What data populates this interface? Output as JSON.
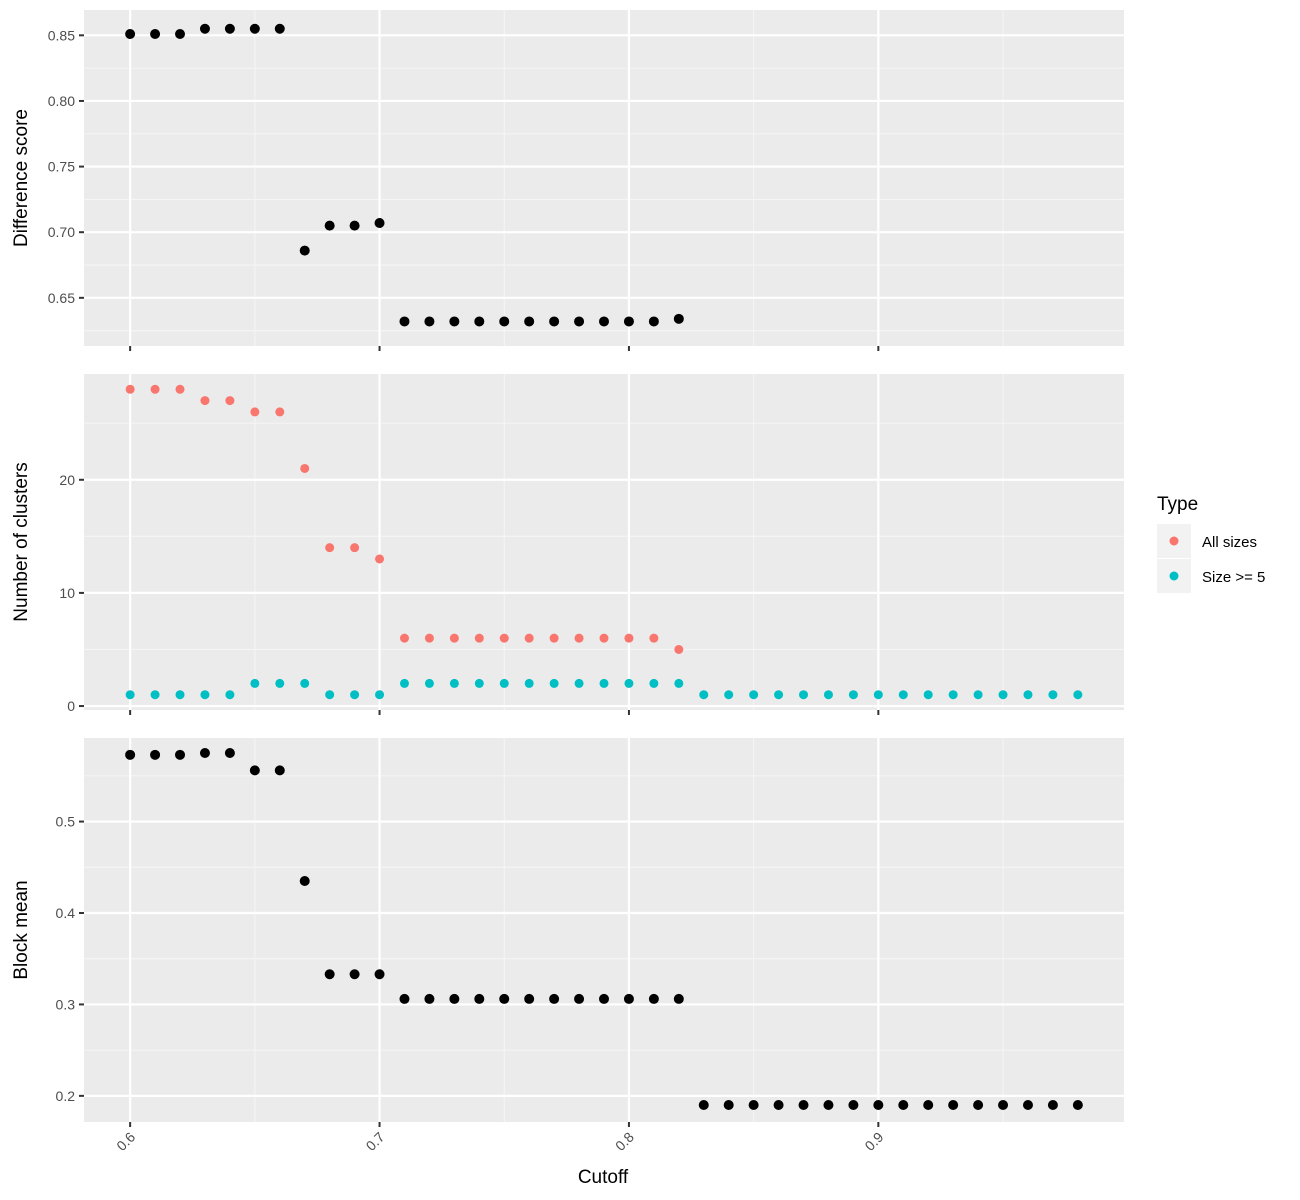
{
  "colors": {
    "panel_bg": "#ebebeb",
    "grid_major": "#ffffff",
    "grid_minor": "#f5f5f5",
    "tick": "#333333",
    "points": "#000000",
    "all_sizes": "#f8766d",
    "size_ge_5": "#00bfc4"
  },
  "chart_data": {
    "type": "scatter",
    "xlabel": "Cutoff",
    "x_ticks": [
      0.6,
      0.7,
      0.8,
      0.9
    ],
    "x_tick_labels": [
      "0.6",
      "0.7",
      "0.8",
      "0.9"
    ],
    "xlim": [
      0.5815,
      0.9985
    ],
    "legend": {
      "title": "Type",
      "position": "right",
      "entries": [
        {
          "label": "All sizes",
          "color": "#f8766d"
        },
        {
          "label": "Size >= 5",
          "color": "#00bfc4"
        }
      ]
    },
    "panels": [
      {
        "ylabel": "Difference score",
        "ylim": [
          0.6133,
          0.8693
        ],
        "y_ticks": [
          0.65,
          0.7,
          0.75,
          0.8,
          0.85
        ],
        "y_tick_labels": [
          "0.65",
          "0.70",
          "0.75",
          "0.80",
          "0.85"
        ],
        "series": [
          {
            "color": "#000000",
            "x": [
              0.6,
              0.61,
              0.62,
              0.63,
              0.64,
              0.65,
              0.66,
              0.67,
              0.68,
              0.69,
              0.7,
              0.71,
              0.72,
              0.73,
              0.74,
              0.75,
              0.76,
              0.77,
              0.78,
              0.79,
              0.8,
              0.81,
              0.82
            ],
            "y": [
              0.851,
              0.851,
              0.851,
              0.855,
              0.855,
              0.855,
              0.855,
              0.686,
              0.705,
              0.705,
              0.707,
              0.632,
              0.632,
              0.632,
              0.632,
              0.632,
              0.632,
              0.632,
              0.632,
              0.632,
              0.632,
              0.632,
              0.634
            ]
          }
        ]
      },
      {
        "ylabel": "Number of clusters",
        "ylim": [
          -0.35,
          29.35
        ],
        "y_ticks": [
          0,
          10,
          20
        ],
        "y_tick_labels": [
          "0",
          "10",
          "20"
        ],
        "series": [
          {
            "name": "All sizes",
            "color": "#f8766d",
            "x": [
              0.6,
              0.61,
              0.62,
              0.63,
              0.64,
              0.65,
              0.66,
              0.67,
              0.68,
              0.69,
              0.7,
              0.71,
              0.72,
              0.73,
              0.74,
              0.75,
              0.76,
              0.77,
              0.78,
              0.79,
              0.8,
              0.81,
              0.82
            ],
            "y": [
              28,
              28,
              28,
              27,
              27,
              26,
              26,
              21,
              14,
              14,
              13,
              6,
              6,
              6,
              6,
              6,
              6,
              6,
              6,
              6,
              6,
              6,
              5
            ]
          },
          {
            "name": "Size >= 5",
            "color": "#00bfc4",
            "x": [
              0.6,
              0.61,
              0.62,
              0.63,
              0.64,
              0.65,
              0.66,
              0.67,
              0.68,
              0.69,
              0.7,
              0.71,
              0.72,
              0.73,
              0.74,
              0.75,
              0.76,
              0.77,
              0.78,
              0.79,
              0.8,
              0.81,
              0.82,
              0.83,
              0.84,
              0.85,
              0.86,
              0.87,
              0.88,
              0.89,
              0.9,
              0.91,
              0.92,
              0.93,
              0.94,
              0.95,
              0.96,
              0.97,
              0.98
            ],
            "y": [
              1,
              1,
              1,
              1,
              1,
              2,
              2,
              2,
              1,
              1,
              1,
              2,
              2,
              2,
              2,
              2,
              2,
              2,
              2,
              2,
              2,
              2,
              2,
              1,
              1,
              1,
              1,
              1,
              1,
              1,
              1,
              1,
              1,
              1,
              1,
              1,
              1,
              1,
              1
            ]
          }
        ]
      },
      {
        "ylabel": "Block mean",
        "ylim": [
          0.1714,
          0.5914
        ],
        "y_ticks": [
          0.2,
          0.3,
          0.4,
          0.5
        ],
        "y_tick_labels": [
          "0.2",
          "0.3",
          "0.4",
          "0.5"
        ],
        "series": [
          {
            "color": "#000000",
            "x": [
              0.6,
              0.61,
              0.62,
              0.63,
              0.64,
              0.65,
              0.66,
              0.67,
              0.68,
              0.69,
              0.7,
              0.71,
              0.72,
              0.73,
              0.74,
              0.75,
              0.76,
              0.77,
              0.78,
              0.79,
              0.8,
              0.81,
              0.82,
              0.83,
              0.84,
              0.85,
              0.86,
              0.87,
              0.88,
              0.89,
              0.9,
              0.91,
              0.92,
              0.93,
              0.94,
              0.95,
              0.96,
              0.97,
              0.98
            ],
            "y": [
              0.573,
              0.573,
              0.573,
              0.575,
              0.575,
              0.556,
              0.556,
              0.435,
              0.333,
              0.333,
              0.333,
              0.306,
              0.306,
              0.306,
              0.306,
              0.306,
              0.306,
              0.306,
              0.306,
              0.306,
              0.306,
              0.306,
              0.306,
              0.19,
              0.19,
              0.19,
              0.19,
              0.19,
              0.19,
              0.19,
              0.19,
              0.19,
              0.19,
              0.19,
              0.19,
              0.19,
              0.19,
              0.19,
              0.19
            ]
          }
        ]
      }
    ]
  }
}
